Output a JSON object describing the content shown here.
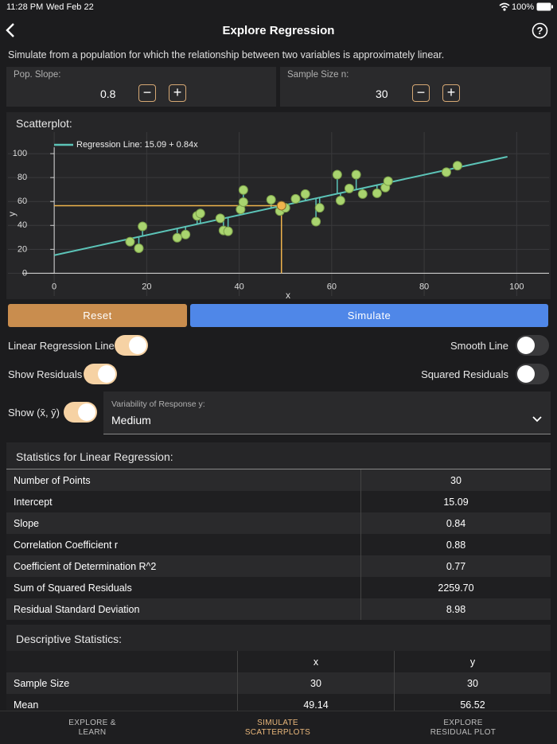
{
  "status": {
    "time": "11:28 PM",
    "date": "Wed Feb 22",
    "battery": "100%"
  },
  "header": {
    "title": "Explore Regression"
  },
  "description": "Simulate from a population for which the relationship between two variables is approximately linear.",
  "controls": {
    "slope_label": "Pop. Slope:",
    "slope": 0.8,
    "size_label": "Sample Size n:",
    "size": 30
  },
  "scatter_title": "Scatterplot:",
  "chart_data": {
    "type": "scatter",
    "legend_label": "Regression Line: 15.09 + 0.84x",
    "xlabel": "x",
    "ylabel": "y",
    "x": [
      16.4,
      18.3,
      19.1,
      26.6,
      28.4,
      30.9,
      31.6,
      35.9,
      36.6,
      37.6,
      40.3,
      40.9,
      40.9,
      46.9,
      48.8,
      50.0,
      52.2,
      54.3,
      56.6,
      57.4,
      61.2,
      61.9,
      63.8,
      65.3,
      66.7,
      69.8,
      71.6,
      72.2,
      84.8,
      87.2
    ],
    "y": [
      26.4,
      20.9,
      39.2,
      29.7,
      32.4,
      48.0,
      50.0,
      45.9,
      35.8,
      35.1,
      53.4,
      69.6,
      59.5,
      61.5,
      52.0,
      54.7,
      62.2,
      66.2,
      43.2,
      54.7,
      82.4,
      60.8,
      70.9,
      82.4,
      66.2,
      66.9,
      71.6,
      77.0,
      84.5,
      89.9
    ],
    "regression": {
      "intercept": 15.09,
      "slope": 0.84,
      "x_range": [
        0,
        98
      ]
    },
    "mean_point": {
      "x": 49.14,
      "y": 56.52
    },
    "xlim": [
      -10,
      107
    ],
    "ylim": [
      -19,
      118
    ],
    "xticks": [
      0,
      20,
      40,
      60,
      80,
      100
    ],
    "yticks": [
      0,
      20,
      40,
      60,
      80,
      100
    ],
    "grid": true,
    "point_color": "#a9d46f",
    "line_color": "#5cc4b8",
    "mean_color": "#f0b44c"
  },
  "buttons": {
    "reset": "Reset",
    "simulate": "Simulate"
  },
  "toggles": [
    {
      "label": "Linear Regression Line",
      "on": true
    },
    {
      "label": "Smooth Line",
      "on": false
    },
    {
      "label": "Show Residuals",
      "on": true
    },
    {
      "label": "Squared Residuals",
      "on": false
    },
    {
      "label": "Show (x̄, ȳ)",
      "on": true
    }
  ],
  "variability": {
    "label": "Variability of Response y:",
    "value": "Medium"
  },
  "stats": {
    "title": "Statistics for Linear Regression:",
    "rows": [
      [
        "Number of Points",
        30
      ],
      [
        "Intercept",
        15.09
      ],
      [
        "Slope",
        0.84
      ],
      [
        "Correlation Coefficient r",
        0.88
      ],
      [
        "Coefficient of Determination R^2",
        0.77
      ],
      [
        "Sum of Squared Residuals",
        "2259.70"
      ],
      [
        "Residual Standard Deviation",
        8.98
      ]
    ]
  },
  "descriptive": {
    "title": "Descriptive Statistics:",
    "header": [
      "x",
      "y"
    ],
    "rows": [
      [
        "Sample Size",
        30,
        30
      ],
      [
        "Mean",
        49.14,
        56.52
      ]
    ]
  },
  "tabs": [
    "EXPLORE & LEARN",
    "SIMULATE SCATTERPLOTS",
    "EXPLORE RESIDUAL PLOT"
  ]
}
